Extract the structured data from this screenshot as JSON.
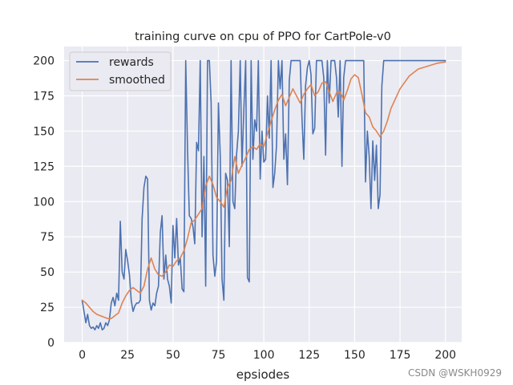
{
  "chart_data": {
    "type": "line",
    "title": "training curve on cpu of PPO for CartPole-v0",
    "xlabel": "epsiodes",
    "ylabel": "",
    "xlim": [
      -9.95,
      208.95
    ],
    "ylim": [
      0,
      210
    ],
    "xticks": [
      0,
      25,
      50,
      75,
      100,
      125,
      150,
      175,
      200
    ],
    "yticks": [
      0,
      25,
      50,
      75,
      100,
      125,
      150,
      175,
      200
    ],
    "grid": true,
    "legend_position": "top-left",
    "series": [
      {
        "name": "rewards",
        "color": "#4c72b0",
        "x": [
          0,
          1,
          2,
          3,
          4,
          5,
          6,
          7,
          8,
          9,
          10,
          11,
          12,
          13,
          14,
          15,
          16,
          17,
          18,
          19,
          20,
          21,
          22,
          23,
          24,
          25,
          26,
          27,
          28,
          29,
          30,
          31,
          32,
          33,
          34,
          35,
          36,
          37,
          38,
          39,
          40,
          41,
          42,
          43,
          44,
          45,
          46,
          47,
          48,
          49,
          50,
          51,
          52,
          53,
          54,
          55,
          56,
          57,
          58,
          59,
          60,
          61,
          62,
          63,
          64,
          65,
          66,
          67,
          68,
          69,
          70,
          71,
          72,
          73,
          74,
          75,
          76,
          77,
          78,
          79,
          80,
          81,
          82,
          83,
          84,
          85,
          86,
          87,
          88,
          89,
          90,
          91,
          92,
          93,
          94,
          95,
          96,
          97,
          98,
          99,
          100,
          101,
          102,
          103,
          104,
          105,
          106,
          107,
          108,
          109,
          110,
          111,
          112,
          113,
          114,
          115,
          116,
          117,
          118,
          119,
          120,
          121,
          122,
          123,
          124,
          125,
          126,
          127,
          128,
          129,
          130,
          131,
          132,
          133,
          134,
          135,
          136,
          137,
          138,
          139,
          140,
          141,
          142,
          143,
          144,
          145,
          146,
          147,
          148,
          149,
          150,
          151,
          152,
          153,
          154,
          155,
          156,
          157,
          158,
          159,
          160,
          161,
          162,
          163,
          164,
          165,
          166,
          200
        ],
        "values": [
          30,
          22,
          14,
          20,
          12,
          10,
          11,
          9,
          12,
          10,
          14,
          9,
          10,
          14,
          12,
          16,
          28,
          32,
          26,
          35,
          30,
          86,
          50,
          45,
          66,
          58,
          48,
          30,
          22,
          26,
          28,
          28,
          30,
          88,
          110,
          118,
          116,
          30,
          23,
          28,
          26,
          35,
          40,
          78,
          90,
          45,
          62,
          45,
          40,
          28,
          83,
          60,
          88,
          55,
          60,
          38,
          36,
          200,
          136,
          90,
          88,
          82,
          70,
          142,
          136,
          200,
          75,
          132,
          40,
          200,
          200,
          170,
          62,
          47,
          58,
          170,
          132,
          45,
          30,
          120,
          115,
          68,
          200,
          100,
          95,
          133,
          150,
          200,
          125,
          165,
          200,
          46,
          43,
          200,
          130,
          158,
          150,
          200,
          116,
          150,
          128,
          130,
          175,
          145,
          200,
          110,
          120,
          140,
          200,
          180,
          200,
          130,
          148,
          112,
          186,
          200,
          200,
          200,
          200,
          200,
          200,
          160,
          130,
          182,
          195,
          200,
          190,
          148,
          152,
          200,
          200,
          200,
          200,
          188,
          133,
          200,
          170,
          200,
          200,
          200,
          188,
          160,
          200,
          125,
          188,
          200,
          200,
          200,
          200,
          200,
          200,
          200,
          200,
          200,
          200,
          200,
          114,
          150,
          132,
          95,
          143,
          115,
          140,
          95,
          105,
          182,
          200,
          200
        ]
      },
      {
        "name": "smoothed",
        "color": "#dd8452",
        "x": [
          0,
          2,
          4,
          6,
          8,
          10,
          12,
          14,
          16,
          18,
          20,
          22,
          24,
          26,
          28,
          30,
          32,
          34,
          36,
          38,
          40,
          42,
          44,
          46,
          48,
          50,
          52,
          54,
          56,
          58,
          60,
          62,
          64,
          66,
          68,
          70,
          72,
          74,
          76,
          78,
          80,
          82,
          84,
          86,
          88,
          90,
          92,
          94,
          96,
          98,
          100,
          102,
          104,
          106,
          108,
          110,
          112,
          114,
          116,
          118,
          120,
          122,
          124,
          126,
          128,
          130,
          132,
          134,
          136,
          138,
          140,
          142,
          144,
          146,
          148,
          150,
          152,
          154,
          156,
          158,
          160,
          162,
          164,
          166,
          168,
          170,
          175,
          180,
          185,
          190,
          195,
          200
        ],
        "values": [
          30,
          28,
          25,
          22,
          20,
          19,
          18,
          17,
          17,
          19,
          21,
          28,
          33,
          37,
          39,
          37,
          35,
          40,
          52,
          60,
          52,
          48,
          47,
          50,
          55,
          54,
          58,
          60,
          65,
          74,
          85,
          87,
          91,
          95,
          111,
          118,
          112,
          103,
          100,
          96,
          110,
          115,
          132,
          120,
          126,
          131,
          137,
          139,
          137,
          141,
          139,
          148,
          157,
          165,
          172,
          176,
          168,
          174,
          180,
          175,
          170,
          176,
          180,
          183,
          175,
          178,
          184,
          185,
          178,
          171,
          177,
          178,
          172,
          179,
          187,
          190,
          188,
          176,
          163,
          160,
          153,
          150,
          146,
          150,
          157,
          166,
          180,
          189,
          194,
          196,
          198,
          199
        ]
      }
    ]
  },
  "watermark": "CSDN @WSKH0929"
}
